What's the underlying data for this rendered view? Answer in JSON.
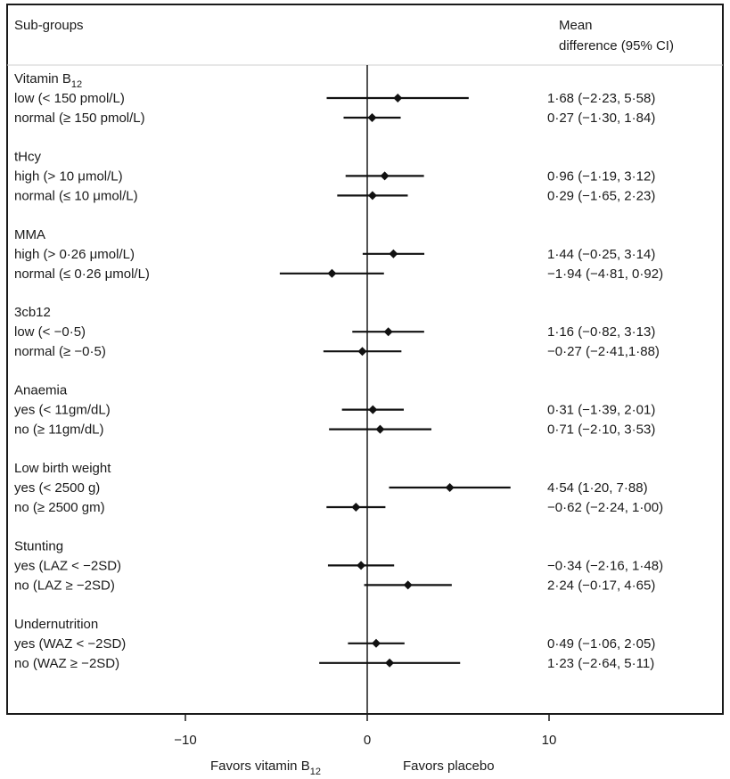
{
  "chart_data": {
    "type": "forest",
    "header": {
      "subgroups_label": "Sub-groups",
      "ci_label_line1": "Mean",
      "ci_label_line2": "difference (95% CI)"
    },
    "xlim": [
      -20,
      20
    ],
    "xticks": [
      -10,
      0,
      10
    ],
    "xtick_labels": [
      "−10",
      "0",
      "10"
    ],
    "reference_line": 0,
    "favors_left": "Favors vitamin B",
    "favors_left_sub": "12",
    "favors_right": "Favors placebo",
    "groups": [
      {
        "title": "Vitamin B",
        "title_sub": "12",
        "rows": [
          {
            "label": "low (< 150 pmol/L)",
            "estimate": 1.68,
            "lower": -2.23,
            "upper": 5.58,
            "ci_text": "1·68 (−2·23, 5·58)"
          },
          {
            "label": "normal (≥ 150 pmol/L)",
            "estimate": 0.27,
            "lower": -1.3,
            "upper": 1.84,
            "ci_text": "0·27 (−1·30, 1·84)"
          }
        ]
      },
      {
        "title": "tHcy",
        "rows": [
          {
            "label": "high (> 10 μmol/L)",
            "estimate": 0.96,
            "lower": -1.19,
            "upper": 3.12,
            "ci_text": "0·96 (−1·19, 3·12)"
          },
          {
            "label": "normal (≤ 10 μmol/L)",
            "estimate": 0.29,
            "lower": -1.65,
            "upper": 2.23,
            "ci_text": "0·29 (−1·65, 2·23)"
          }
        ]
      },
      {
        "title": "MMA",
        "rows": [
          {
            "label": "high (> 0·26 μmol/L)",
            "estimate": 1.44,
            "lower": -0.25,
            "upper": 3.14,
            "ci_text": "1·44 (−0·25, 3·14)"
          },
          {
            "label": "normal (≤ 0·26 μmol/L)",
            "estimate": -1.94,
            "lower": -4.81,
            "upper": 0.92,
            "ci_text": "−1·94 (−4·81, 0·92)"
          }
        ]
      },
      {
        "title": "3cb12",
        "rows": [
          {
            "label": "low (< −0·5)",
            "estimate": 1.16,
            "lower": -0.82,
            "upper": 3.13,
            "ci_text": "1·16 (−0·82, 3·13)"
          },
          {
            "label": "normal (≥ −0·5)",
            "estimate": -0.27,
            "lower": -2.41,
            "upper": 1.88,
            "ci_text": "−0·27 (−2·41,1·88)"
          }
        ]
      },
      {
        "title": "Anaemia",
        "rows": [
          {
            "label": "yes (< 11gm/dL)",
            "estimate": 0.31,
            "lower": -1.39,
            "upper": 2.01,
            "ci_text": "0·31 (−1·39, 2·01)"
          },
          {
            "label": "no (≥ 11gm/dL)",
            "estimate": 0.71,
            "lower": -2.1,
            "upper": 3.53,
            "ci_text": "0·71 (−2·10, 3·53)"
          }
        ]
      },
      {
        "title": "Low birth weight",
        "rows": [
          {
            "label": "yes (< 2500 g)",
            "estimate": 4.54,
            "lower": 1.2,
            "upper": 7.88,
            "ci_text": "4·54 (1·20, 7·88)"
          },
          {
            "label": "no (≥ 2500 gm)",
            "estimate": -0.62,
            "lower": -2.24,
            "upper": 1.0,
            "ci_text": "−0·62 (−2·24, 1·00)"
          }
        ]
      },
      {
        "title": "Stunting",
        "rows": [
          {
            "label": "yes (LAZ < −2SD)",
            "estimate": -0.34,
            "lower": -2.16,
            "upper": 1.48,
            "ci_text": "−0·34 (−2·16, 1·48)"
          },
          {
            "label": "no (LAZ ≥ −2SD)",
            "estimate": 2.24,
            "lower": -0.17,
            "upper": 4.65,
            "ci_text": "2·24 (−0·17, 4·65)"
          }
        ]
      },
      {
        "title": "Undernutrition",
        "rows": [
          {
            "label": "yes (WAZ < −2SD)",
            "estimate": 0.49,
            "lower": -1.06,
            "upper": 2.05,
            "ci_text": "0·49 (−1·06, 2·05)"
          },
          {
            "label": "no (WAZ ≥ −2SD)",
            "estimate": 1.23,
            "lower": -2.64,
            "upper": 5.11,
            "ci_text": "1·23 (−2·64, 5·11)"
          }
        ]
      }
    ]
  }
}
